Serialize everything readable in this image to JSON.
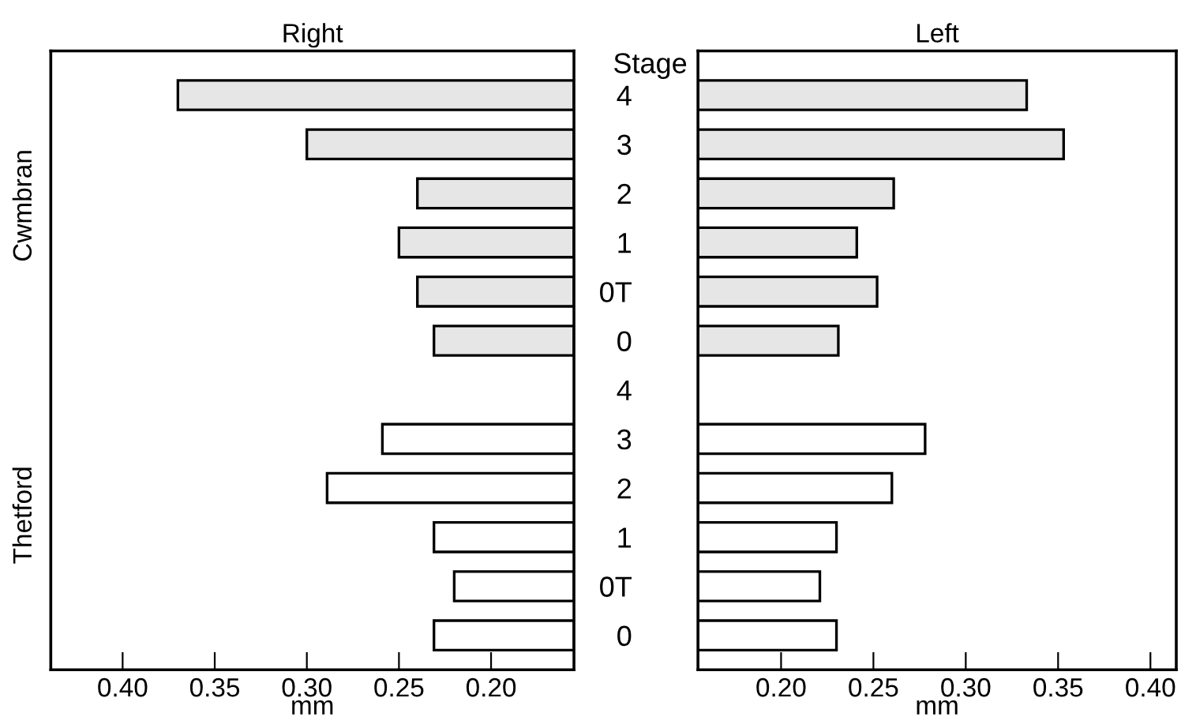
{
  "chart_data": [
    {
      "type": "bar",
      "orientation": "horizontal",
      "title": "Right",
      "xlabel": "mm",
      "categories": [
        null,
        null,
        null,
        null,
        null,
        null,
        null,
        null,
        null,
        null,
        null,
        null
      ],
      "values": [
        0.37,
        0.3,
        0.24,
        0.25,
        0.24,
        0.231,
        null,
        0.259,
        0.289,
        0.231,
        0.22,
        0.231
      ],
      "colors": [
        "#e6e6e6",
        "#e6e6e6",
        "#e6e6e6",
        "#e6e6e6",
        "#e6e6e6",
        "#e6e6e6",
        "#ffffff",
        "#ffffff",
        "#ffffff",
        "#ffffff",
        "#ffffff",
        "#ffffff"
      ],
      "xlim": [
        0.439,
        0.155
      ],
      "xticks": [
        {
          "value": 0.4,
          "label": "0.40"
        },
        {
          "value": 0.35,
          "label": "0.35"
        },
        {
          "value": 0.3,
          "label": "0.30"
        },
        {
          "value": 0.25,
          "label": "0.25"
        },
        {
          "value": 0.2,
          "label": "0.20"
        }
      ],
      "grid": false,
      "legend": false,
      "annotations": [
        "Cwmbran",
        "Thetford"
      ]
    },
    {
      "type": "bar",
      "orientation": "horizontal",
      "title": "Left",
      "xlabel": "mm",
      "ylabel": "Stage",
      "categories": [
        "4",
        "3",
        "2",
        "1",
        "0T",
        "0",
        "4",
        "3",
        "2",
        "1",
        "0T",
        "0"
      ],
      "values": [
        0.333,
        0.353,
        0.261,
        0.241,
        0.252,
        0.231,
        null,
        0.278,
        0.26,
        0.23,
        0.221,
        0.23
      ],
      "colors": [
        "#e6e6e6",
        "#e6e6e6",
        "#e6e6e6",
        "#e6e6e6",
        "#e6e6e6",
        "#e6e6e6",
        "#ffffff",
        "#ffffff",
        "#ffffff",
        "#ffffff",
        "#ffffff",
        "#ffffff"
      ],
      "xlim": [
        0.155,
        0.414
      ],
      "xticks": [
        {
          "value": 0.2,
          "label": "0.20"
        },
        {
          "value": 0.25,
          "label": "0.25"
        },
        {
          "value": 0.3,
          "label": "0.30"
        },
        {
          "value": 0.35,
          "label": "0.35"
        },
        {
          "value": 0.4,
          "label": "0.40"
        }
      ],
      "grid": false,
      "legend": false
    }
  ]
}
